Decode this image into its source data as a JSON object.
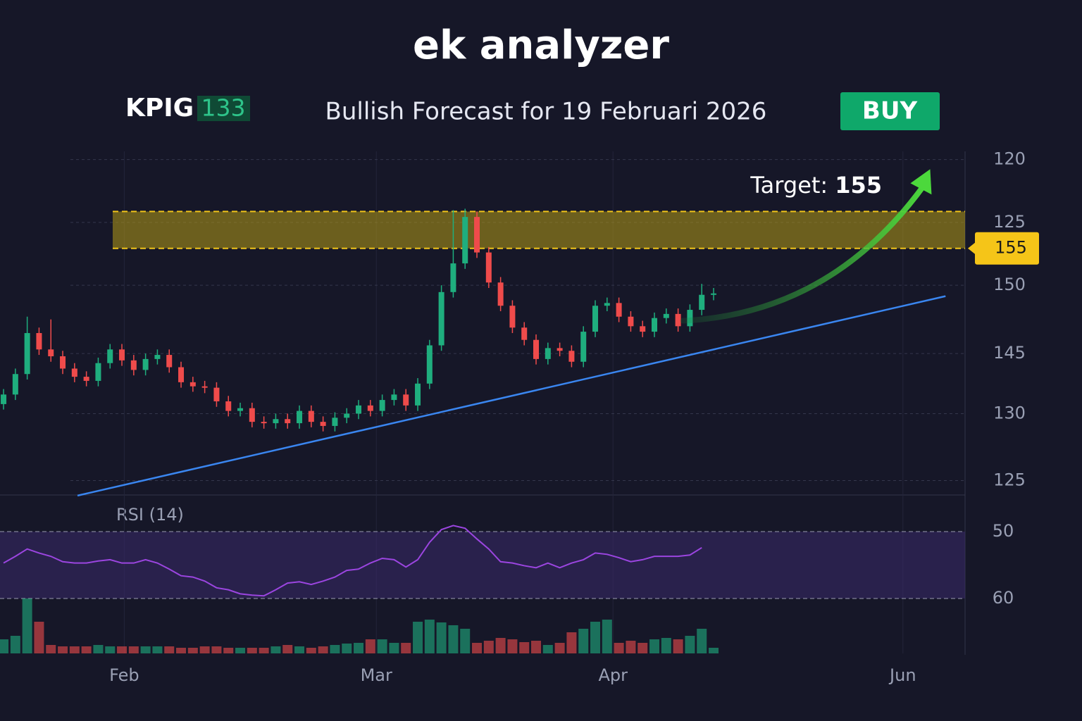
{
  "header": {
    "title": "ek analyzer",
    "ticker": "KPIG",
    "price": 133,
    "forecast": "Bullish Forecast for 19 Februari 2026",
    "action": "BUY"
  },
  "chart_data": {
    "type": "candlestick",
    "x": [
      0,
      1,
      2,
      3,
      4,
      5,
      6,
      7,
      8,
      9,
      10,
      11,
      12,
      13,
      14,
      15,
      16,
      17,
      18,
      19,
      20,
      21,
      22,
      23,
      24,
      25,
      26,
      27,
      28,
      29,
      30,
      31,
      32,
      33,
      34,
      35,
      36,
      37,
      38,
      39,
      40,
      41,
      42,
      43,
      44,
      45,
      46,
      47,
      48,
      49,
      50,
      51,
      52,
      53,
      54,
      55,
      56,
      57,
      58,
      59,
      60
    ],
    "open": [
      141.3,
      142.0,
      143.5,
      146.5,
      145.3,
      144.8,
      143.9,
      143.3,
      143.0,
      144.3,
      145.3,
      144.5,
      143.8,
      144.6,
      144.9,
      144.0,
      142.9,
      142.6,
      142.5,
      141.5,
      140.8,
      141.0,
      140.0,
      139.9,
      140.2,
      139.9,
      140.8,
      140.0,
      139.7,
      140.3,
      140.6,
      141.2,
      140.8,
      141.6,
      142.0,
      141.2,
      142.8,
      145.6,
      149.5,
      151.6,
      155.0,
      152.4,
      150.2,
      148.5,
      146.9,
      146.0,
      144.6,
      145.4,
      145.2,
      144.4,
      146.6,
      148.5,
      148.7,
      147.7,
      147.0,
      146.6,
      147.6,
      147.9,
      147.0,
      148.2,
      149.3
    ],
    "high": [
      142.4,
      143.9,
      147.7,
      146.9,
      147.5,
      145.2,
      144.3,
      143.7,
      144.7,
      145.7,
      145.7,
      144.9,
      145.0,
      145.3,
      145.3,
      144.4,
      143.3,
      143.0,
      142.9,
      141.9,
      141.4,
      141.4,
      140.4,
      140.6,
      140.6,
      141.2,
      141.2,
      140.4,
      140.7,
      141.0,
      141.6,
      141.6,
      142.0,
      142.4,
      142.4,
      143.2,
      146.0,
      150.0,
      155.5,
      155.6,
      155.4,
      152.8,
      150.6,
      148.9,
      147.3,
      146.4,
      145.8,
      145.8,
      145.6,
      147.0,
      148.9,
      149.1,
      149.1,
      148.1,
      147.4,
      148.0,
      148.3,
      148.3,
      148.6,
      150.1,
      149.8
    ],
    "low": [
      140.9,
      141.6,
      143.1,
      144.9,
      144.4,
      143.5,
      142.9,
      142.6,
      142.6,
      143.9,
      144.1,
      143.4,
      143.4,
      144.2,
      143.6,
      142.5,
      142.2,
      142.1,
      141.1,
      140.4,
      140.4,
      139.6,
      139.5,
      139.5,
      139.5,
      139.5,
      139.6,
      139.3,
      139.3,
      139.9,
      140.2,
      140.4,
      140.4,
      141.2,
      140.8,
      140.8,
      142.4,
      145.2,
      149.1,
      151.2,
      152.0,
      149.8,
      148.1,
      146.5,
      145.6,
      144.2,
      144.2,
      144.8,
      144.0,
      144.0,
      146.2,
      148.1,
      147.3,
      146.6,
      146.2,
      146.2,
      147.2,
      146.6,
      146.6,
      147.8,
      148.9
    ],
    "close": [
      142.0,
      143.5,
      146.5,
      145.3,
      144.8,
      143.9,
      143.3,
      143.0,
      144.3,
      145.3,
      144.5,
      143.8,
      144.6,
      144.9,
      144.0,
      142.9,
      142.6,
      142.5,
      141.5,
      140.8,
      141.0,
      140.0,
      139.9,
      140.2,
      139.9,
      140.8,
      140.0,
      139.7,
      140.3,
      140.6,
      141.2,
      140.8,
      141.6,
      142.0,
      141.2,
      142.8,
      145.6,
      149.5,
      151.6,
      155.0,
      152.4,
      150.2,
      148.5,
      146.9,
      146.0,
      144.6,
      145.4,
      145.2,
      144.4,
      146.6,
      148.5,
      148.7,
      147.7,
      147.0,
      146.6,
      147.6,
      147.9,
      147.0,
      148.2,
      149.3,
      149.4
    ],
    "volume": [
      20,
      25,
      78,
      45,
      12,
      10,
      10,
      10,
      12,
      10,
      10,
      10,
      10,
      10,
      10,
      8,
      8,
      10,
      10,
      8,
      8,
      8,
      8,
      10,
      12,
      10,
      8,
      10,
      12,
      14,
      15,
      20,
      20,
      15,
      15,
      45,
      48,
      44,
      40,
      35,
      15,
      18,
      22,
      20,
      16,
      18,
      12,
      15,
      30,
      35,
      45,
      48,
      15,
      18,
      15,
      20,
      22,
      20,
      25,
      35,
      8
    ],
    "rsi_label": "RSI (14)",
    "rsi": [
      54.7,
      53.7,
      52.6,
      53.2,
      53.7,
      54.5,
      54.7,
      54.7,
      54.4,
      54.2,
      54.7,
      54.7,
      54.2,
      54.7,
      55.6,
      56.6,
      56.8,
      57.4,
      58.4,
      58.7,
      59.3,
      59.5,
      59.6,
      58.7,
      57.7,
      57.5,
      57.9,
      57.4,
      56.8,
      55.8,
      55.6,
      54.7,
      54.0,
      54.2,
      55.3,
      54.2,
      51.6,
      49.7,
      49.1,
      49.5,
      51.1,
      52.6,
      54.5,
      54.7,
      55.1,
      55.4,
      54.7,
      55.4,
      54.7,
      54.2,
      53.2,
      53.4,
      53.9,
      54.5,
      54.2,
      53.7,
      53.7,
      53.7,
      53.5,
      52.4,
      null
    ],
    "rsi_ylim": [
      47,
      63
    ],
    "rsi_yticks": [
      50,
      60
    ],
    "up_color": "#1fae7e",
    "down_color": "#ef4b4b",
    "xlim": [
      -0.3,
      81.25
    ],
    "xticks": [
      {
        "value": 10.2,
        "label": "Feb"
      },
      {
        "value": 31.5,
        "label": "Mar"
      },
      {
        "value": 51.5,
        "label": "Apr"
      },
      {
        "value": 76,
        "label": "Jun"
      }
    ],
    "ylim": [
      134.8,
      159.8
    ],
    "yticks": [
      {
        "value": 159.2,
        "label": "120"
      },
      {
        "value": 154.6,
        "label": "125"
      },
      150,
      145,
      {
        "value": 140.6,
        "label": "130"
      },
      {
        "value": 135.7,
        "label": "125"
      }
    ],
    "zone": [
      152.7,
      155.4
    ],
    "price_badge": "155",
    "trendline": {
      "x": [
        6.25,
        79.6
      ],
      "y": [
        134.6,
        149.2
      ]
    },
    "arrow": {
      "x": [
        57.4,
        78.3
      ],
      "y": [
        147.4,
        158.5
      ]
    },
    "target_label": "Target:",
    "target": 155,
    "grid": true
  }
}
